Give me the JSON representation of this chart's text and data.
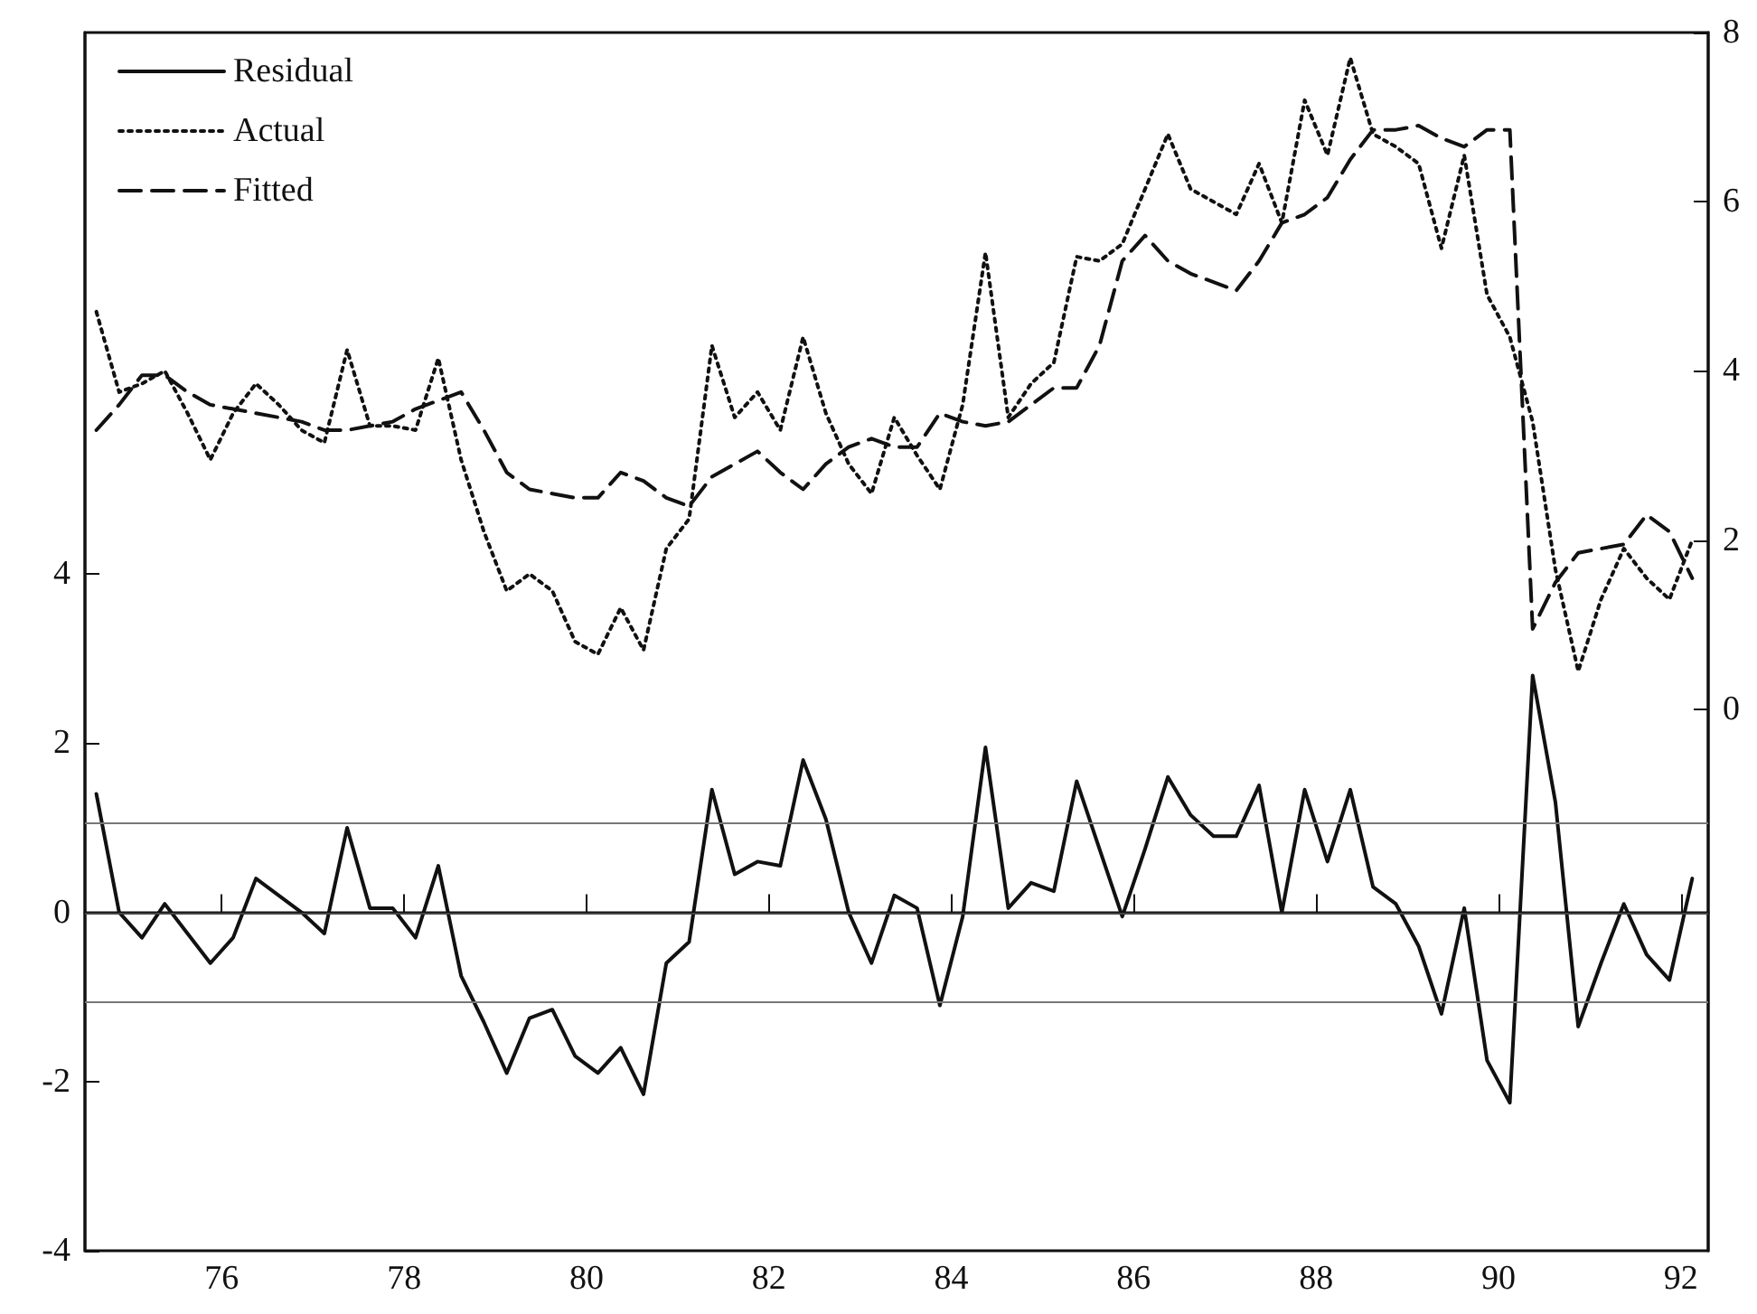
{
  "chart_data": {
    "type": "line",
    "x": [
      74.625,
      74.875,
      75.125,
      75.375,
      75.625,
      75.875,
      76.125,
      76.375,
      76.625,
      76.875,
      77.125,
      77.375,
      77.625,
      77.875,
      78.125,
      78.375,
      78.625,
      78.875,
      79.125,
      79.375,
      79.625,
      79.875,
      80.125,
      80.375,
      80.625,
      80.875,
      81.125,
      81.375,
      81.625,
      81.875,
      82.125,
      82.375,
      82.625,
      82.875,
      83.125,
      83.375,
      83.625,
      83.875,
      84.125,
      84.375,
      84.625,
      84.875,
      85.125,
      85.375,
      85.625,
      85.875,
      86.125,
      86.375,
      86.625,
      86.875,
      87.125,
      87.375,
      87.625,
      87.875,
      88.125,
      88.375,
      88.625,
      88.875,
      89.125,
      89.375,
      89.625,
      89.875,
      90.125,
      90.375,
      90.625,
      90.875,
      91.125,
      91.375,
      91.625,
      91.875,
      92.125
    ],
    "series": [
      {
        "name": "Residual",
        "color": "#111111",
        "line_style": "solid",
        "axis": "y",
        "values": [
          1.4,
          0.0,
          -0.3,
          0.1,
          -0.25,
          -0.6,
          -0.3,
          0.4,
          0.2,
          0.0,
          -0.25,
          1.0,
          0.05,
          0.05,
          -0.3,
          0.55,
          -0.75,
          -1.3,
          -1.9,
          -1.25,
          -1.15,
          -1.7,
          -1.9,
          -1.6,
          -2.15,
          -0.6,
          -0.35,
          1.45,
          0.45,
          0.6,
          0.55,
          1.8,
          1.1,
          0.0,
          -0.6,
          0.2,
          0.05,
          -1.1,
          -0.05,
          1.95,
          0.05,
          0.35,
          0.25,
          1.55,
          0.75,
          -0.05,
          0.75,
          1.6,
          1.15,
          0.9,
          0.9,
          1.5,
          0.0,
          1.45,
          0.6,
          1.45,
          0.3,
          0.1,
          -0.4,
          -1.2,
          0.05,
          -1.75,
          -2.25,
          2.8,
          1.3,
          -1.35,
          -0.6,
          0.1,
          -0.5,
          -0.8,
          0.4
        ]
      },
      {
        "name": "Actual",
        "color": "#111111",
        "line_style": "dotted",
        "axis": "y2",
        "values": [
          4.7,
          3.75,
          3.85,
          4.0,
          3.5,
          2.95,
          3.5,
          3.85,
          3.6,
          3.3,
          3.15,
          4.25,
          3.35,
          3.35,
          3.3,
          4.15,
          2.95,
          2.1,
          1.4,
          1.6,
          1.4,
          0.8,
          0.65,
          1.2,
          0.7,
          1.9,
          2.25,
          4.3,
          3.45,
          3.75,
          3.3,
          4.4,
          3.5,
          2.9,
          2.55,
          3.45,
          3.0,
          2.6,
          3.6,
          5.4,
          3.45,
          3.85,
          4.1,
          5.35,
          5.3,
          5.5,
          6.15,
          6.8,
          6.15,
          6.0,
          5.85,
          6.45,
          5.75,
          7.2,
          6.55,
          7.7,
          6.8,
          6.65,
          6.45,
          5.45,
          6.55,
          4.9,
          4.4,
          3.4,
          1.65,
          0.45,
          1.3,
          1.9,
          1.55,
          1.3,
          2.0
        ]
      },
      {
        "name": "Fitted",
        "color": "#111111",
        "line_style": "dashed",
        "axis": "y2",
        "values": [
          3.3,
          3.6,
          3.95,
          3.95,
          3.75,
          3.6,
          3.55,
          3.5,
          3.45,
          3.4,
          3.3,
          3.3,
          3.35,
          3.4,
          3.55,
          3.65,
          3.75,
          3.3,
          2.8,
          2.6,
          2.55,
          2.5,
          2.5,
          2.8,
          2.7,
          2.5,
          2.4,
          2.75,
          2.9,
          3.05,
          2.8,
          2.6,
          2.9,
          3.1,
          3.2,
          3.1,
          3.1,
          3.5,
          3.4,
          3.35,
          3.4,
          3.6,
          3.8,
          3.8,
          4.3,
          5.3,
          5.6,
          5.3,
          5.15,
          5.05,
          4.95,
          5.3,
          5.75,
          5.85,
          6.05,
          6.5,
          6.85,
          6.85,
          6.9,
          6.75,
          6.65,
          6.85,
          6.85,
          0.95,
          1.5,
          1.85,
          1.9,
          1.95,
          2.3,
          2.1,
          1.55
        ]
      }
    ],
    "xlim": [
      74.5,
      92.3
    ],
    "xticks": [
      76,
      78,
      80,
      82,
      84,
      86,
      88,
      90,
      92
    ],
    "ylim": [
      -4,
      10.4
    ],
    "yticks": [
      -4,
      -2,
      0,
      2,
      4
    ],
    "y2lim": [
      -6.4,
      8
    ],
    "y2ticks": [
      0,
      2,
      4,
      6,
      8
    ],
    "ref_lines": [
      {
        "axis": "y",
        "value": 0,
        "color": "#444444"
      },
      {
        "axis": "y",
        "value": 1.05,
        "color": "#777777"
      },
      {
        "axis": "y",
        "value": -1.05,
        "color": "#777777"
      }
    ],
    "legend": "top left",
    "marker": "none",
    "grid": false
  }
}
